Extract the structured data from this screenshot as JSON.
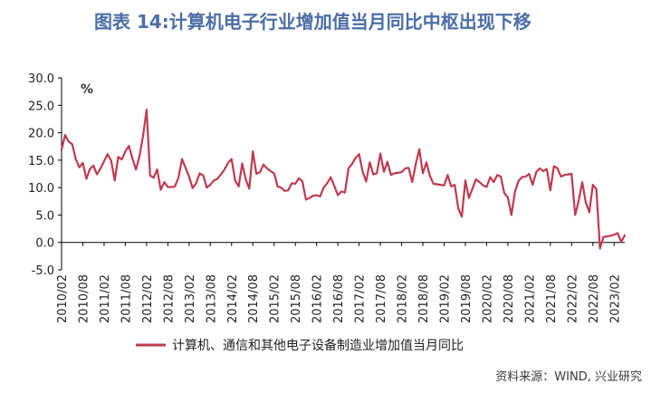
{
  "title": "图表 14:计算机电子行业增加值当月同比中枢出现下移",
  "source": "资料来源：WIND, 兴业研究",
  "colors": {
    "line": "#c03a50",
    "title": "#4a6ea6",
    "axis": "#000000"
  },
  "chart_data": {
    "type": "line",
    "unit_label": "%",
    "ylim": [
      -5,
      30
    ],
    "yticks": [
      "30.0",
      "25.0",
      "20.0",
      "15.0",
      "10.0",
      "5.0",
      "0.0",
      "-5.0"
    ],
    "ytick_values": [
      30,
      25,
      20,
      15,
      10,
      5,
      0,
      -5
    ],
    "xticks": [
      "2010/02",
      "2010/08",
      "2011/02",
      "2011/08",
      "2012/02",
      "2012/08",
      "2013/02",
      "2013/08",
      "2014/02",
      "2014/08",
      "2015/02",
      "2015/08",
      "2016/02",
      "2016/08",
      "2017/02",
      "2017/08",
      "2018/02",
      "2018/08",
      "2019/02",
      "2019/08",
      "2020/02",
      "2020/08",
      "2021/02",
      "2021/08",
      "2022/02",
      "2022/08",
      "2023/02"
    ],
    "legend": "计算机、通信和其他电子设备制造业增加值当月同比",
    "legend_position": "bottom",
    "series": [
      {
        "name": "计算机、通信和其他电子设备制造业增加值当月同比",
        "start": "2010/02",
        "values": [
          16.9,
          19.6,
          18.4,
          17.9,
          15.2,
          13.7,
          14.5,
          11.6,
          13.4,
          14.0,
          12.4,
          13.5,
          14.8,
          16.1,
          14.9,
          11.3,
          15.6,
          15.1,
          16.6,
          17.6,
          15.3,
          13.3,
          15.7,
          19.4,
          24.2,
          12.2,
          11.8,
          13.3,
          9.6,
          11.0,
          10.1,
          10.1,
          10.2,
          11.8,
          15.2,
          13.6,
          12.0,
          9.9,
          10.8,
          12.6,
          12.2,
          10.0,
          10.5,
          11.3,
          11.6,
          12.4,
          13.3,
          14.5,
          15.2,
          11.3,
          10.2,
          14.4,
          11.5,
          9.8,
          16.6,
          12.5,
          12.8,
          14.2,
          13.5,
          13.0,
          12.6,
          10.2,
          10.0,
          9.4,
          9.5,
          10.8,
          10.7,
          11.7,
          11.1,
          7.8,
          8.1,
          8.5,
          8.6,
          8.4,
          10.0,
          10.8,
          11.9,
          10.3,
          8.6,
          9.3,
          9.1,
          13.5,
          14.3,
          15.4,
          16.1,
          12.9,
          11.1,
          14.6,
          12.4,
          12.6,
          16.2,
          12.9,
          14.7,
          12.3,
          12.6,
          12.7,
          12.8,
          13.5,
          13.6,
          11.0,
          14.3,
          17.0,
          12.6,
          14.6,
          12.1,
          10.7,
          10.6,
          10.5,
          10.4,
          12.3,
          10.2,
          10.5,
          6.2,
          4.7,
          11.3,
          8.1,
          9.8,
          11.5,
          11.0,
          10.4,
          10.1,
          11.9,
          11.0,
          12.3,
          12.0,
          9.0,
          8.2,
          5.0,
          9.2,
          11.2,
          11.9,
          12.0,
          12.5,
          10.5,
          12.8,
          13.5,
          13.0,
          13.4,
          9.5,
          13.9,
          13.5,
          12.0,
          12.3,
          12.4,
          12.5,
          5.0,
          7.6,
          11.0,
          7.3,
          5.5,
          10.5,
          9.7,
          -1.1,
          1.0,
          1.1,
          1.2,
          1.4,
          1.7,
          0.1,
          1.3
        ]
      }
    ]
  }
}
